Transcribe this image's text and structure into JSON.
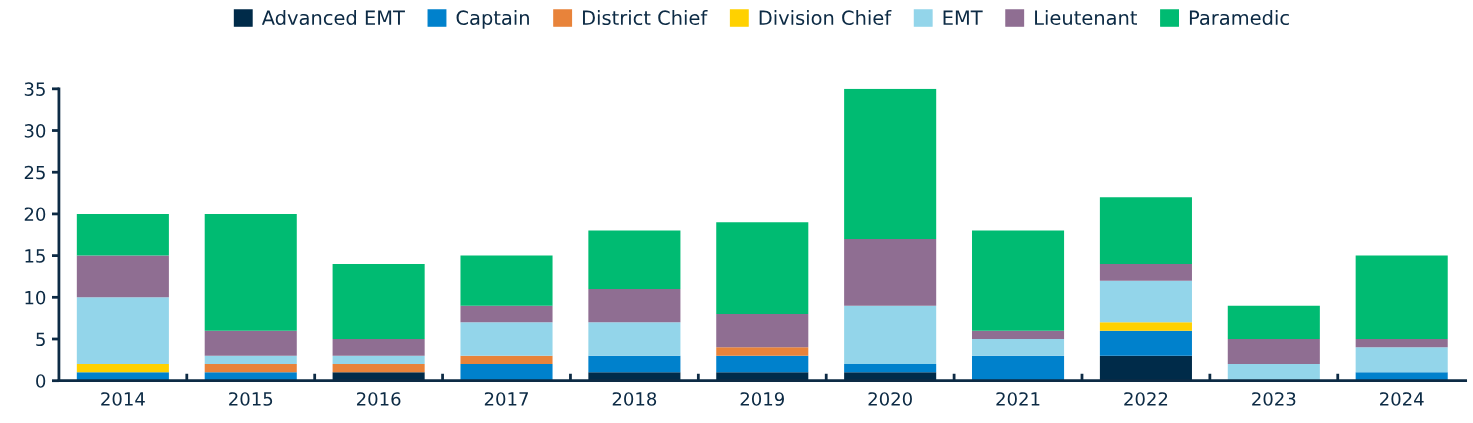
{
  "chart_data": {
    "type": "bar",
    "stacked": true,
    "categories": [
      "2014",
      "2015",
      "2016",
      "2017",
      "2018",
      "2019",
      "2020",
      "2021",
      "2022",
      "2023",
      "2024"
    ],
    "series": [
      {
        "name": "Advanced EMT",
        "color": "#002b49",
        "values": [
          0,
          0,
          1,
          0,
          1,
          1,
          1,
          0,
          3,
          0,
          0
        ]
      },
      {
        "name": "Captain",
        "color": "#0081cc",
        "values": [
          1,
          1,
          0,
          2,
          2,
          2,
          1,
          3,
          3,
          0,
          1
        ]
      },
      {
        "name": "District Chief",
        "color": "#e8833a",
        "values": [
          0,
          1,
          1,
          1,
          0,
          1,
          0,
          0,
          0,
          0,
          0
        ]
      },
      {
        "name": "Division Chief",
        "color": "#ffd100",
        "values": [
          1,
          0,
          0,
          0,
          0,
          0,
          0,
          0,
          1,
          0,
          0
        ]
      },
      {
        "name": "EMT",
        "color": "#93d5ea",
        "values": [
          8,
          1,
          1,
          4,
          4,
          0,
          7,
          2,
          5,
          2,
          3
        ]
      },
      {
        "name": "Lieutenant",
        "color": "#8f6e92",
        "values": [
          5,
          3,
          2,
          2,
          4,
          4,
          8,
          1,
          2,
          3,
          1
        ]
      },
      {
        "name": "Paramedic",
        "color": "#00bb72",
        "values": [
          5,
          14,
          9,
          6,
          7,
          11,
          18,
          12,
          8,
          4,
          10
        ]
      }
    ],
    "ylim": [
      0,
      35
    ],
    "yticks": [
      0,
      5,
      10,
      15,
      20,
      25,
      30,
      35
    ],
    "grid": false,
    "legend": "top"
  }
}
